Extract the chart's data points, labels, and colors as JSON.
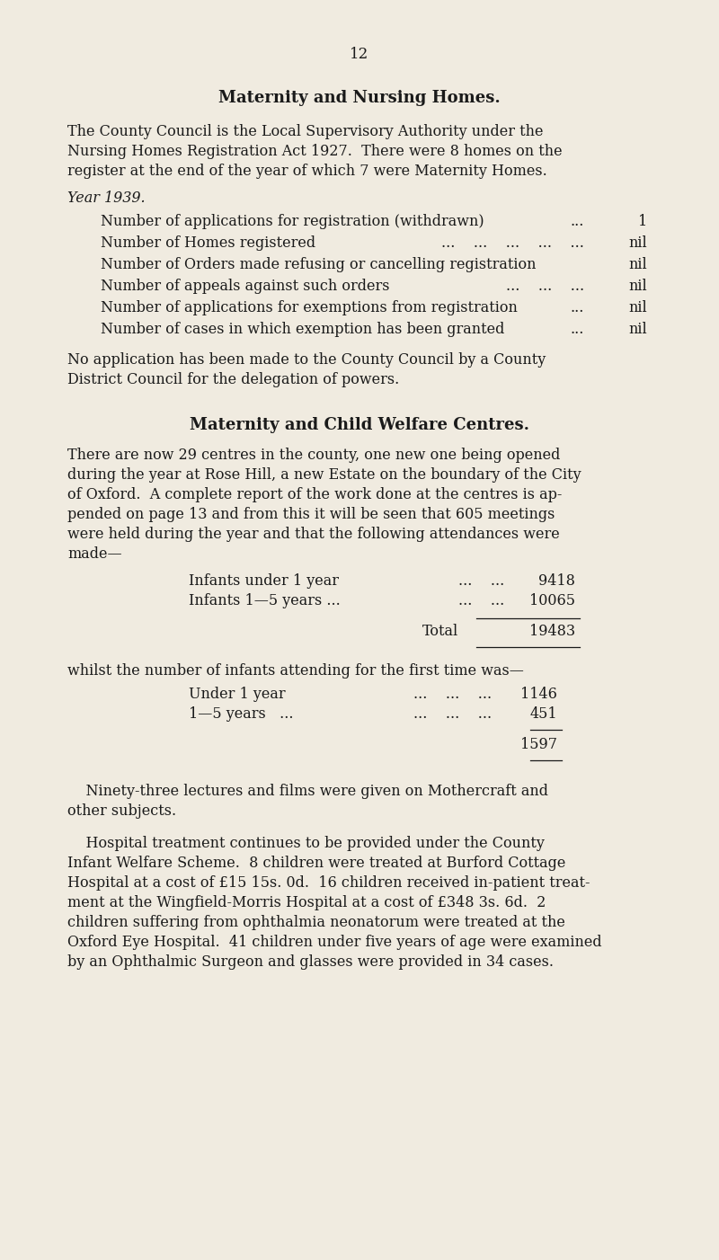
{
  "bg_color": "#f0ebe0",
  "text_color": "#1a1a1a",
  "page_number": "12",
  "section1_title": "Maternity and Nursing Homes.",
  "section1_para1_lines": [
    "The County Council is the Local Supervisory Authority under the",
    "Nursing Homes Registration Act 1927.  There were 8 homes on the",
    "register at the end of the year of which 7 were Maternity Homes."
  ],
  "year_label": "Year 1939.",
  "item_labels": [
    "Number of applications for registration (withdrawn)",
    "Number of Homes registered",
    "Number of Orders made refusing or cancelling registration",
    "Number of appeals against such orders",
    "Number of applications for exemptions from registration",
    "Number of cases in which exemption has been granted"
  ],
  "item_dots": [
    "...",
    "...    ...    ...    ...    ...",
    "",
    "...    ...    ...",
    "...",
    "..."
  ],
  "item_values": [
    "1",
    "nil",
    "nil",
    "nil",
    "nil",
    "nil"
  ],
  "section1_para2_lines": [
    "No application has been made to the County Council by a County",
    "District Council for the delegation of powers."
  ],
  "section2_title": "Maternity and Child Welfare Centres.",
  "section2_para1_lines": [
    "There are now 29 centres in the county, one new one being opened",
    "during the year at Rose Hill, a new Estate on the boundary of the City",
    "of Oxford.  A complete report of the work done at the centres is ap-",
    "pended on page 13 and from this it will be seen that 605 meetings",
    "were held during the year and that the following attendances were",
    "made—"
  ],
  "att_labels": [
    "Infants under 1 year",
    "Infants 1—5 years ..."
  ],
  "att_dots": [
    "...    ...",
    "...    ..."
  ],
  "att_values": [
    "9418",
    "10065"
  ],
  "total_label": "Total",
  "total_value": "19483",
  "firsttime_intro": "whilst the number of infants attending for the first time was—",
  "ft_labels": [
    "Under 1 year",
    "1—5 years   ..."
  ],
  "ft_dots": [
    "...    ...    ...",
    "...    ...    ..."
  ],
  "ft_values": [
    "1146",
    "451"
  ],
  "subtotal_value": "1597",
  "section2_para2_lines": [
    "Ninety-three lectures and films were given on Mothercraft and",
    "other subjects."
  ],
  "section2_para3_lines": [
    "Hospital treatment continues to be provided under the County",
    "Infant Welfare Scheme.  8 children were treated at Burford Cottage",
    "Hospital at a cost of £15 15s. 0d.  16 children received in-patient treat-",
    "ment at the Wingfield-Morris Hospital at a cost of £348 3s. 6d.  2",
    "children suffering from ophthalmia neonatorum were treated at the",
    "Oxford Eye Hospital.  41 children under five years of age were examined",
    "by an Ophthalmic Surgeon and glasses were provided in 34 cases."
  ]
}
